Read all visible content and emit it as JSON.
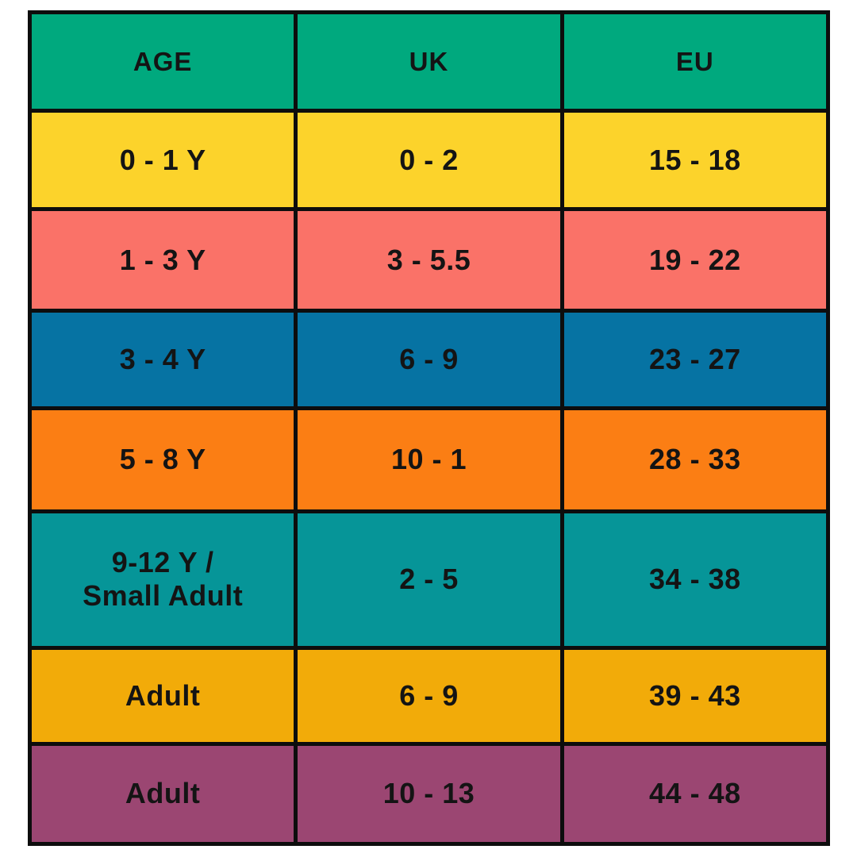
{
  "page": {
    "background": "#ffffff",
    "border_color": "#0d0d0d",
    "text_color": "#141414"
  },
  "table": {
    "header": {
      "bg": "#00a97e",
      "age_label": "AGE",
      "uk_label": "UK",
      "eu_label": "EU"
    },
    "rows": [
      {
        "age": "0 - 1 Y",
        "uk": "0 - 2",
        "eu": "15 - 18",
        "bg": "#fcd32b"
      },
      {
        "age": "1 - 3 Y",
        "uk": "3 - 5.5",
        "eu": "19 - 22",
        "bg": "#fa7268"
      },
      {
        "age": "3 - 4 Y",
        "uk": "6 - 9",
        "eu": "23 - 27",
        "bg": "#0673a3"
      },
      {
        "age": "5 - 8 Y",
        "uk": "10 - 1",
        "eu": "28 - 33",
        "bg": "#fb7e14"
      },
      {
        "age": "9-12 Y /\nSmall Adult",
        "uk": "2 - 5",
        "eu": "34 - 38",
        "bg": "#069598"
      },
      {
        "age": "Adult",
        "uk": "6 - 9",
        "eu": "39 - 43",
        "bg": "#f2ab09"
      },
      {
        "age": "Adult",
        "uk": "10 - 13",
        "eu": "44 - 48",
        "bg": "#9b4672"
      }
    ]
  },
  "chart_data": {
    "type": "table",
    "title": "",
    "columns": [
      "AGE",
      "UK",
      "EU"
    ],
    "rows": [
      [
        "0 - 1 Y",
        "0 - 2",
        "15 - 18"
      ],
      [
        "1 - 3 Y",
        "3 - 5.5",
        "19 - 22"
      ],
      [
        "3 - 4 Y",
        "6 - 9",
        "23 - 27"
      ],
      [
        "5 - 8 Y",
        "10 - 1",
        "28 - 33"
      ],
      [
        "9-12 Y / Small Adult",
        "2 - 5",
        "34 - 38"
      ],
      [
        "Adult",
        "6 - 9",
        "39 - 43"
      ],
      [
        "Adult",
        "10 - 13",
        "44 - 48"
      ]
    ],
    "row_colors": [
      "#fcd32b",
      "#fa7268",
      "#0673a3",
      "#fb7e14",
      "#069598",
      "#f2ab09",
      "#9b4672"
    ],
    "header_color": "#00a97e"
  }
}
